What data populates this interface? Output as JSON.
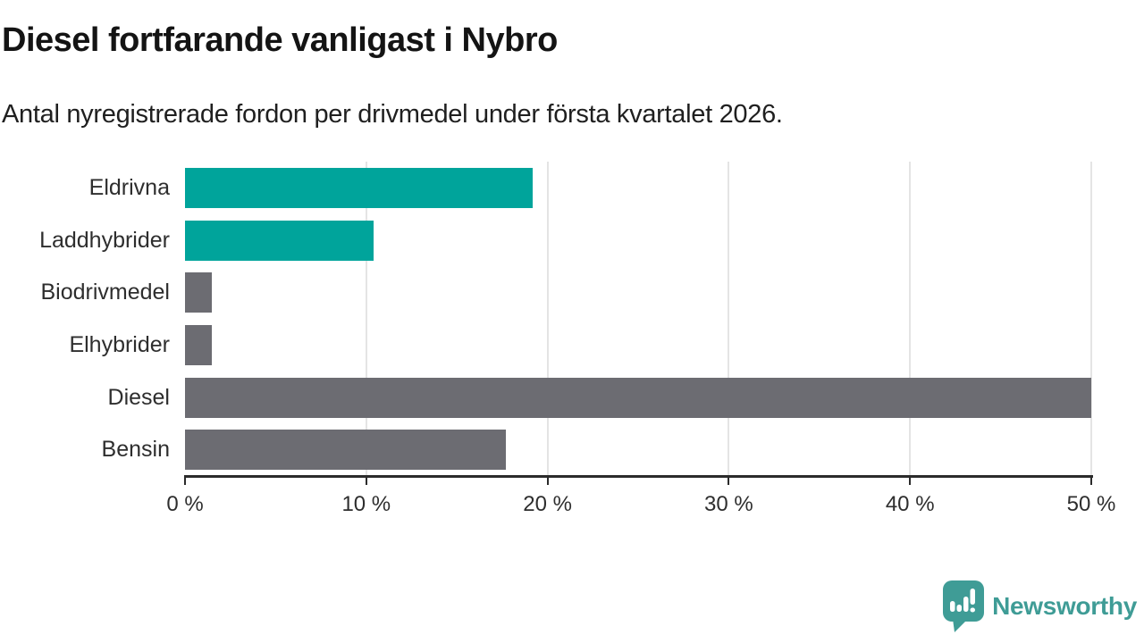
{
  "chart_data": {
    "type": "bar",
    "orientation": "horizontal",
    "title": "Diesel fortfarande vanligast i Nybro",
    "subtitle": "Antal nyregistrerade fordon per drivmedel under första kvartalet 2026.",
    "categories": [
      "Eldrivna",
      "Laddhybrider",
      "Biodrivmedel",
      "Elhybrider",
      "Diesel",
      "Bensin"
    ],
    "values": [
      19.2,
      10.4,
      1.5,
      1.5,
      50.0,
      17.7
    ],
    "unit": "%",
    "xlim": [
      0,
      50
    ],
    "xticks": [
      0,
      10,
      20,
      30,
      40,
      50
    ],
    "xtick_labels": [
      "0 %",
      "10 %",
      "20 %",
      "30 %",
      "40 %",
      "50 %"
    ],
    "bar_colors": [
      "#00a49b",
      "#00a49b",
      "#6c6c72",
      "#6c6c72",
      "#6c6c72",
      "#6c6c72"
    ],
    "highlight_color": "#00a49b",
    "base_color": "#6c6c72",
    "grid": true,
    "grid_color": "#e4e4e4",
    "axis_color": "#2b2b2b",
    "label_color": "#2e2e2e",
    "legend_position": "none"
  },
  "footer": {
    "brand": "Newsworthy",
    "brand_color": "#3f9c96",
    "logo_icon": "speech-bubble-bar-chart-exclamation-icon"
  }
}
